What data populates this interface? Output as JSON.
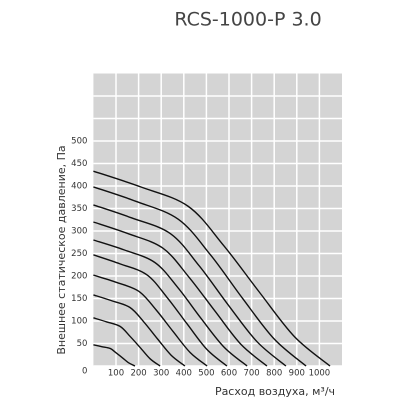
{
  "chart_data": {
    "type": "line",
    "title": "RCS-1000-P 3.0",
    "x_label": "Расход воздуха, м³/ч",
    "y_label": "Внешнее статическое давление, Па",
    "xlim": [
      0,
      1100
    ],
    "ylim": [
      0,
      650
    ],
    "xticks": [
      100,
      200,
      300,
      400,
      500,
      600,
      700,
      800,
      900,
      1000
    ],
    "yticks": [
      0,
      50,
      100,
      150,
      200,
      250,
      300,
      350,
      400,
      450,
      500
    ],
    "grid": true,
    "color": "#111111",
    "series": [
      {
        "x": [
          0,
          209,
          419,
          576,
          733,
          890,
          1047
        ],
        "values": [
          433,
          398,
          355,
          268,
          165,
          65,
          0
        ]
      },
      {
        "x": [
          0,
          188,
          376,
          518,
          659,
          800,
          941
        ],
        "values": [
          398,
          366,
          326,
          247,
          151,
          60,
          0
        ]
      },
      {
        "x": [
          0,
          170,
          341,
          469,
          596,
          724,
          852
        ],
        "values": [
          358,
          329,
          294,
          222,
          136,
          54,
          0
        ]
      },
      {
        "x": [
          0,
          154,
          307,
          422,
          538,
          653,
          768
        ],
        "values": [
          320,
          294,
          262,
          198,
          122,
          48,
          0
        ]
      },
      {
        "x": [
          0,
          136,
          272,
          374,
          476,
          578,
          680
        ],
        "values": [
          280,
          258,
          230,
          174,
          106,
          42,
          0
        ]
      },
      {
        "x": [
          0,
          118,
          236,
          325,
          414,
          502,
          591
        ],
        "values": [
          247,
          227,
          203,
          153,
          94,
          37,
          0
        ]
      },
      {
        "x": [
          0,
          101,
          201,
          277,
          352,
          428,
          503
        ],
        "values": [
          202,
          186,
          166,
          125,
          77,
          30,
          0
        ]
      },
      {
        "x": [
          0,
          81,
          162,
          223,
          284,
          344,
          405
        ],
        "values": [
          158,
          145,
          130,
          98,
          60,
          24,
          0
        ]
      },
      {
        "x": [
          0,
          59,
          118,
          162,
          207,
          251,
          295
        ],
        "values": [
          107,
          98,
          88,
          66,
          41,
          16,
          0
        ]
      },
      {
        "x": [
          0,
          37,
          74,
          101,
          129,
          156,
          184
        ],
        "values": [
          47,
          43,
          39,
          29,
          18,
          7,
          0
        ]
      }
    ]
  }
}
